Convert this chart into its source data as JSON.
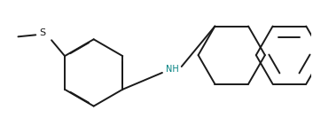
{
  "background_color": "#ffffff",
  "line_color": "#1a1a1a",
  "nh_color": "#008080",
  "line_width": 1.4,
  "figsize": [
    3.53,
    1.51
  ],
  "dpi": 100
}
